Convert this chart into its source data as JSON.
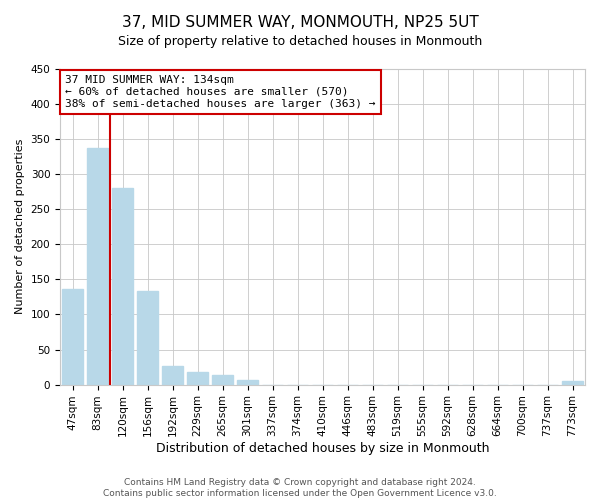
{
  "title": "37, MID SUMMER WAY, MONMOUTH, NP25 5UT",
  "subtitle": "Size of property relative to detached houses in Monmouth",
  "xlabel": "Distribution of detached houses by size in Monmouth",
  "ylabel": "Number of detached properties",
  "bar_labels": [
    "47sqm",
    "83sqm",
    "120sqm",
    "156sqm",
    "192sqm",
    "229sqm",
    "265sqm",
    "301sqm",
    "337sqm",
    "374sqm",
    "410sqm",
    "446sqm",
    "483sqm",
    "519sqm",
    "555sqm",
    "592sqm",
    "628sqm",
    "664sqm",
    "700sqm",
    "737sqm",
    "773sqm"
  ],
  "bar_values": [
    136,
    337,
    281,
    134,
    27,
    18,
    13,
    6,
    0,
    0,
    0,
    0,
    0,
    0,
    0,
    0,
    0,
    0,
    0,
    0,
    5
  ],
  "bar_color": "#b8d8e8",
  "vline_x_idx": 2,
  "vline_color": "#cc0000",
  "annotation_line1": "37 MID SUMMER WAY: 134sqm",
  "annotation_line2": "← 60% of detached houses are smaller (570)",
  "annotation_line3": "38% of semi-detached houses are larger (363) →",
  "annotation_box_color": "#ffffff",
  "annotation_box_edgecolor": "#cc0000",
  "ylim": [
    0,
    450
  ],
  "yticks": [
    0,
    50,
    100,
    150,
    200,
    250,
    300,
    350,
    400,
    450
  ],
  "footer_line1": "Contains HM Land Registry data © Crown copyright and database right 2024.",
  "footer_line2": "Contains public sector information licensed under the Open Government Licence v3.0.",
  "background_color": "#ffffff",
  "grid_color": "#c8c8c8",
  "title_fontsize": 11,
  "subtitle_fontsize": 9,
  "xlabel_fontsize": 9,
  "ylabel_fontsize": 8,
  "tick_fontsize": 7.5,
  "annotation_fontsize": 8,
  "footer_fontsize": 6.5
}
